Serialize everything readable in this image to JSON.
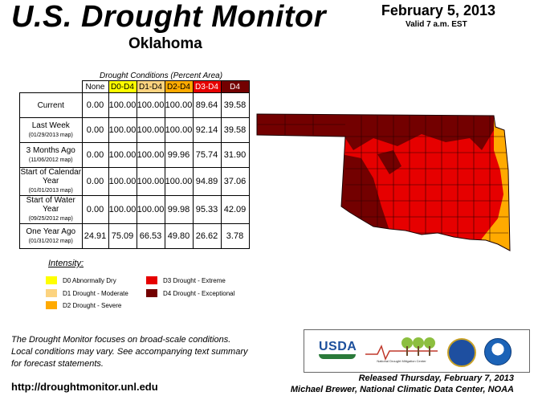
{
  "header": {
    "title": "U.S. Drought Monitor",
    "state": "Oklahoma",
    "date": "February 5, 2013",
    "valid": "Valid 7 a.m. EST"
  },
  "conditions": {
    "caption": "Drought Conditions (Percent Area)",
    "columns": [
      "None",
      "D0-D4",
      "D1-D4",
      "D2-D4",
      "D3-D4",
      "D4"
    ],
    "rows": [
      {
        "label": "Current",
        "sub": "",
        "values": [
          "0.00",
          "100.00",
          "100.00",
          "100.00",
          "89.64",
          "39.58"
        ]
      },
      {
        "label": "Last Week",
        "sub": "(01/29/2013 map)",
        "values": [
          "0.00",
          "100.00",
          "100.00",
          "100.00",
          "92.14",
          "39.58"
        ]
      },
      {
        "label": "3 Months Ago",
        "sub": "(11/06/2012 map)",
        "values": [
          "0.00",
          "100.00",
          "100.00",
          "99.96",
          "75.74",
          "31.90"
        ]
      },
      {
        "label": "Start of Calendar Year",
        "sub": "(01/01/2013 map)",
        "values": [
          "0.00",
          "100.00",
          "100.00",
          "100.00",
          "94.89",
          "37.06"
        ]
      },
      {
        "label": "Start of Water Year",
        "sub": "(09/25/2012 map)",
        "values": [
          "0.00",
          "100.00",
          "100.00",
          "99.98",
          "95.33",
          "42.09"
        ]
      },
      {
        "label": "One Year Ago",
        "sub": "(01/31/2012 map)",
        "values": [
          "24.91",
          "75.09",
          "66.53",
          "49.80",
          "26.62",
          "3.78"
        ]
      }
    ]
  },
  "legend": {
    "title": "Intensity:",
    "items": [
      {
        "label": "D0 Abnormally Dry",
        "color": "#ffff00"
      },
      {
        "label": "D1 Drought - Moderate",
        "color": "#fcd37f"
      },
      {
        "label": "D2 Drought - Severe",
        "color": "#ffaa00"
      },
      {
        "label": "D3 Drought - Extreme",
        "color": "#e60000"
      },
      {
        "label": "D4 Drought - Exceptional",
        "color": "#730000"
      }
    ]
  },
  "note": {
    "line1": "The Drought Monitor focuses on broad-scale conditions.",
    "line2": "Local conditions may vary. See accompanying text summary",
    "line3": "for forecast statements."
  },
  "footer": {
    "url": "http://droughtmonitor.unl.edu",
    "released": "Released Thursday, February 7, 2013",
    "author": "Michael Brewer, National Climatic Data Center, NOAA"
  },
  "logos": {
    "usda": "USDA",
    "ndmc": "National Drought Mitigation Center"
  },
  "map": {
    "region_colors": {
      "exceptional": "#730000",
      "extreme": "#e60000",
      "severe": "#ffaa00"
    }
  }
}
